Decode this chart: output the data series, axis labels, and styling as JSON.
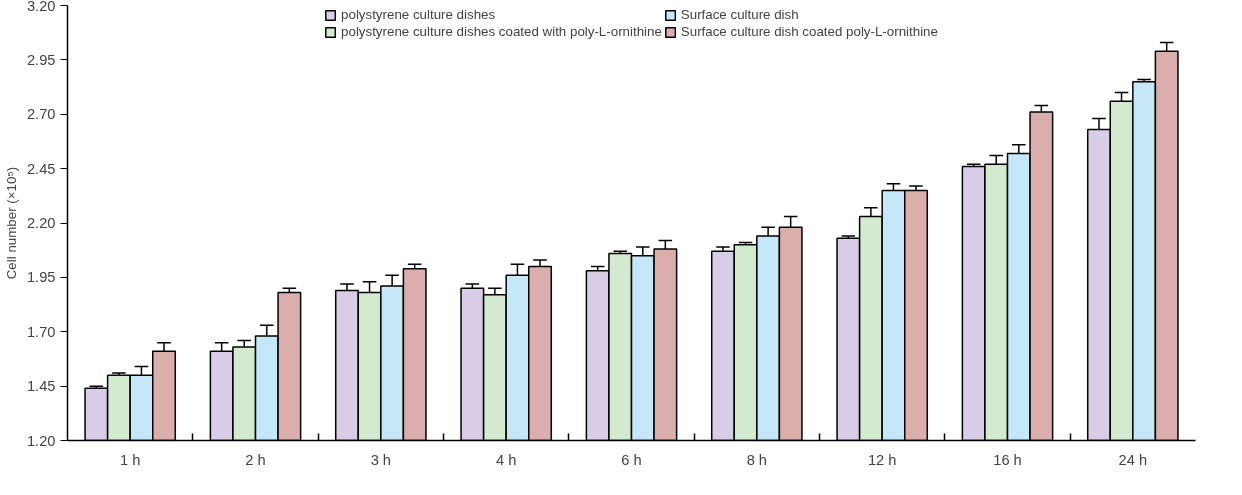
{
  "chart_data": {
    "type": "bar",
    "ylabel": "Cell number (×10⁵)",
    "categories": [
      "1 h",
      "2 h",
      "3 h",
      "4 h",
      "6 h",
      "8 h",
      "12 h",
      "16 h",
      "24 h"
    ],
    "series": [
      {
        "name": "polystyrene culture dishes",
        "color": "#d9cce6",
        "values": [
          1.44,
          1.61,
          1.89,
          1.9,
          1.98,
          2.07,
          2.13,
          2.46,
          2.63
        ],
        "errors": [
          [
            1.44,
            1.45
          ],
          [
            1.61,
            1.65
          ],
          [
            1.89,
            1.92
          ],
          [
            1.9,
            1.92
          ],
          [
            1.98,
            2.0
          ],
          [
            2.07,
            2.09
          ],
          [
            2.13,
            2.14
          ],
          [
            2.46,
            2.47
          ],
          [
            2.63,
            2.68
          ]
        ]
      },
      {
        "name": "polystyrene culture dishes coated with poly-L-ornithine",
        "color": "#d4ead0",
        "values": [
          1.5,
          1.63,
          1.88,
          1.87,
          2.06,
          2.1,
          2.23,
          2.47,
          2.76
        ],
        "errors": [
          [
            1.5,
            1.51
          ],
          [
            1.63,
            1.66
          ],
          [
            1.88,
            1.93
          ],
          [
            1.87,
            1.9
          ],
          [
            2.06,
            2.07
          ],
          [
            2.1,
            2.11
          ],
          [
            2.23,
            2.27
          ],
          [
            2.47,
            2.51
          ],
          [
            2.76,
            2.8
          ]
        ]
      },
      {
        "name": "Surface culture dish",
        "color": "#c5e7f7",
        "values": [
          1.5,
          1.68,
          1.91,
          1.96,
          2.05,
          2.14,
          2.35,
          2.52,
          2.85
        ],
        "errors": [
          [
            1.5,
            1.54
          ],
          [
            1.68,
            1.73
          ],
          [
            1.91,
            1.96
          ],
          [
            1.96,
            2.01
          ],
          [
            2.05,
            2.09
          ],
          [
            2.14,
            2.18
          ],
          [
            2.35,
            2.38
          ],
          [
            2.52,
            2.56
          ],
          [
            2.85,
            2.86
          ]
        ]
      },
      {
        "name": "Surface culture dish coated poly-L-ornithine",
        "color": "#dbaeae",
        "values": [
          1.61,
          1.88,
          1.99,
          2.0,
          2.08,
          2.18,
          2.35,
          2.71,
          2.99
        ],
        "errors": [
          [
            1.61,
            1.65
          ],
          [
            1.88,
            1.9
          ],
          [
            1.99,
            2.01
          ],
          [
            2.0,
            2.03
          ],
          [
            2.08,
            2.12
          ],
          [
            2.18,
            2.23
          ],
          [
            2.35,
            2.37
          ],
          [
            2.71,
            2.74
          ],
          [
            2.99,
            3.03
          ]
        ]
      }
    ],
    "ylim": [
      1.2,
      3.2
    ],
    "yticks": [
      {
        "value": 1.2,
        "label": "1.20"
      },
      1.45,
      {
        "value": 1.7,
        "label": "1.70"
      },
      1.95,
      {
        "value": 2.2,
        "label": "2.20"
      },
      2.45,
      {
        "value": 2.7,
        "label": "2.70"
      },
      2.95,
      {
        "value": 3.2,
        "label": "3.20"
      }
    ],
    "grid": false,
    "legend": "top"
  }
}
